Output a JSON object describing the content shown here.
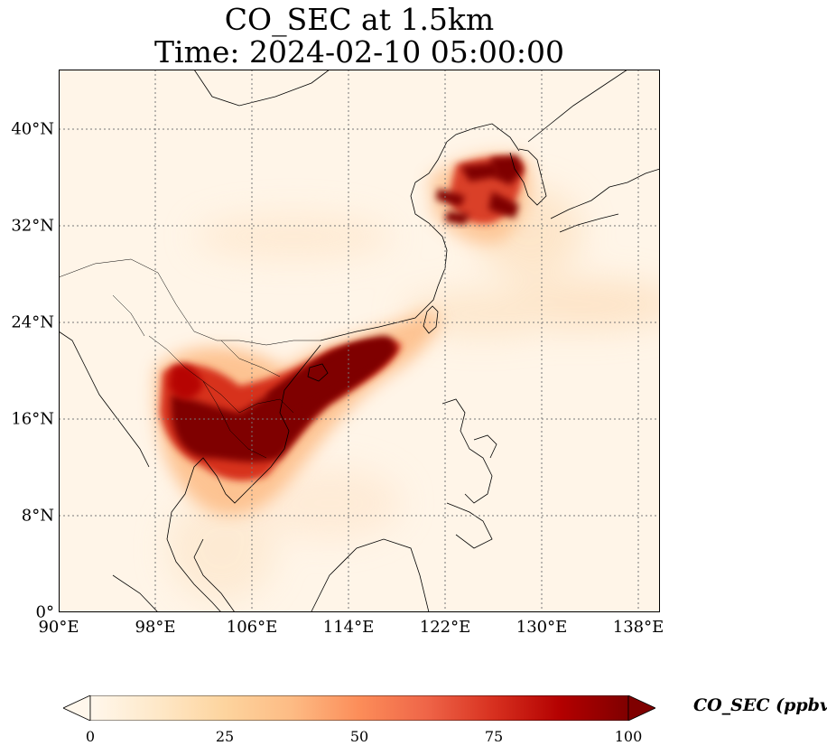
{
  "title": {
    "line1": "CO_SEC at 1.5km",
    "line2": "Time: 2024-02-10 05:00:00"
  },
  "map": {
    "projection": "PlateCarree",
    "extent": {
      "lon": [
        90,
        139
      ],
      "lat": [
        0,
        44
      ]
    },
    "x_ticks": [
      "90°E",
      "98°E",
      "106°E",
      "114°E",
      "122°E",
      "130°E",
      "138°E"
    ],
    "y_ticks": [
      "0°",
      "8°N",
      "16°N",
      "24°N",
      "32°N",
      "40°N"
    ],
    "gridlines": "dotted",
    "coastlines": true,
    "borders": true,
    "colormap": "OrRd",
    "high_concentration_regions": [
      "Indochina (Thailand, Laos, Cambodia, Vietnam)",
      "South China Sea plume toward Taiwan",
      "Korean Peninsula and Yellow Sea"
    ]
  },
  "colorbar": {
    "label": "CO_SEC (ppbv)",
    "ticks": [
      "0",
      "25",
      "50",
      "75",
      "100"
    ],
    "range": [
      0,
      100
    ],
    "extend": "both",
    "colors": [
      "#fff7ec",
      "#fee8c8",
      "#fdd49e",
      "#fdbb84",
      "#fc8d59",
      "#ef6548",
      "#d7301f",
      "#b30000",
      "#7f0000"
    ]
  }
}
